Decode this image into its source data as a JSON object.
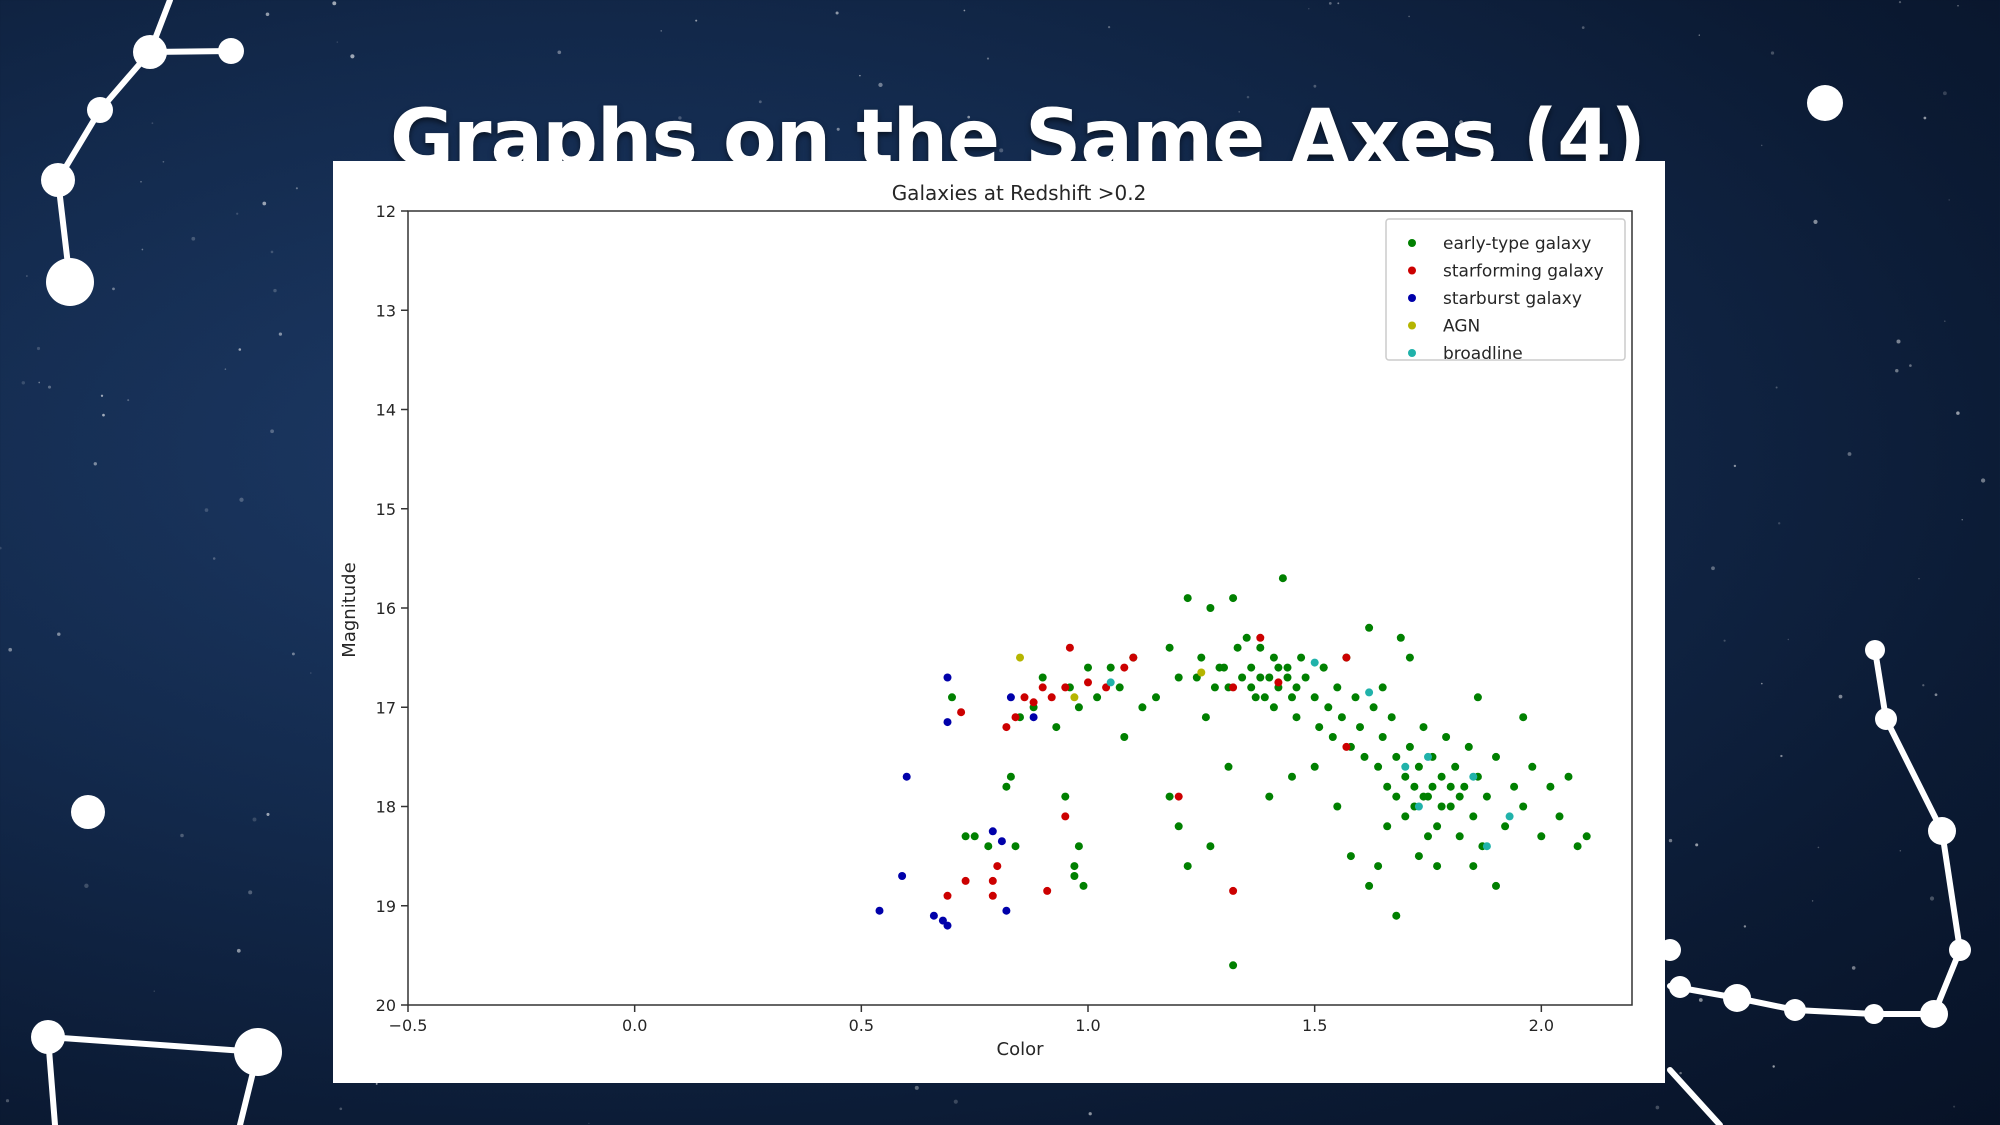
{
  "slide": {
    "title": "Graphs on the Same Axes (4)",
    "background_color": "#132a4d",
    "constellation_color": "#ffffff"
  },
  "chart_data": {
    "type": "scatter",
    "title": "Galaxies at Redshift >0.2",
    "xlabel": "Color",
    "ylabel": "Magnitude",
    "xlim": [
      -0.5,
      2.2
    ],
    "ylim": [
      20,
      12
    ],
    "y_inverted": true,
    "xticks": [
      -0.5,
      0.0,
      0.5,
      1.0,
      1.5,
      2.0
    ],
    "xtick_labels": [
      "−0.5",
      "0.0",
      "0.5",
      "1.0",
      "1.5",
      "2.0"
    ],
    "yticks": [
      12,
      13,
      14,
      15,
      16,
      17,
      18,
      19,
      20
    ],
    "ytick_labels": [
      "12",
      "13",
      "14",
      "15",
      "16",
      "17",
      "18",
      "19",
      "20"
    ],
    "grid": false,
    "legend_position": "top-right",
    "series": [
      {
        "name": "early-type galaxy",
        "color": "#008000",
        "points": [
          [
            0.7,
            16.9
          ],
          [
            0.75,
            18.3
          ],
          [
            0.73,
            18.3
          ],
          [
            0.78,
            18.4
          ],
          [
            0.83,
            17.7
          ],
          [
            0.84,
            18.4
          ],
          [
            0.82,
            17.8
          ],
          [
            0.85,
            17.1
          ],
          [
            0.88,
            17.0
          ],
          [
            0.9,
            16.7
          ],
          [
            0.93,
            17.2
          ],
          [
            0.96,
            16.8
          ],
          [
            0.98,
            17.0
          ],
          [
            1.0,
            16.6
          ],
          [
            1.02,
            16.9
          ],
          [
            1.05,
            16.6
          ],
          [
            1.07,
            16.8
          ],
          [
            1.1,
            16.5
          ],
          [
            1.12,
            17.0
          ],
          [
            1.15,
            16.9
          ],
          [
            1.18,
            16.4
          ],
          [
            1.2,
            16.7
          ],
          [
            1.22,
            15.9
          ],
          [
            1.25,
            16.5
          ],
          [
            1.27,
            16.0
          ],
          [
            1.28,
            16.8
          ],
          [
            1.3,
            16.6
          ],
          [
            1.32,
            15.9
          ],
          [
            1.33,
            16.4
          ],
          [
            1.35,
            16.3
          ],
          [
            1.36,
            16.6
          ],
          [
            1.37,
            16.9
          ],
          [
            1.38,
            16.4
          ],
          [
            1.4,
            16.7
          ],
          [
            1.41,
            16.5
          ],
          [
            1.42,
            16.8
          ],
          [
            1.43,
            15.7
          ],
          [
            1.44,
            16.6
          ],
          [
            1.45,
            16.9
          ],
          [
            1.46,
            17.1
          ],
          [
            1.47,
            16.5
          ],
          [
            1.48,
            16.7
          ],
          [
            1.5,
            16.9
          ],
          [
            1.51,
            17.2
          ],
          [
            1.52,
            16.6
          ],
          [
            1.53,
            17.0
          ],
          [
            1.54,
            17.3
          ],
          [
            1.55,
            16.8
          ],
          [
            1.56,
            17.1
          ],
          [
            1.57,
            16.5
          ],
          [
            1.58,
            17.4
          ],
          [
            1.59,
            16.9
          ],
          [
            1.6,
            17.2
          ],
          [
            1.61,
            17.5
          ],
          [
            1.62,
            16.2
          ],
          [
            1.63,
            17.0
          ],
          [
            1.64,
            17.6
          ],
          [
            1.65,
            17.3
          ],
          [
            1.66,
            17.8
          ],
          [
            1.67,
            17.1
          ],
          [
            1.68,
            17.5
          ],
          [
            1.69,
            16.3
          ],
          [
            1.7,
            17.7
          ],
          [
            1.71,
            17.4
          ],
          [
            1.72,
            18.0
          ],
          [
            1.73,
            17.6
          ],
          [
            1.74,
            17.2
          ],
          [
            1.75,
            17.9
          ],
          [
            1.76,
            17.5
          ],
          [
            1.77,
            18.2
          ],
          [
            1.78,
            17.7
          ],
          [
            1.79,
            17.3
          ],
          [
            1.8,
            18.0
          ],
          [
            1.81,
            17.6
          ],
          [
            1.82,
            18.3
          ],
          [
            1.83,
            17.8
          ],
          [
            1.84,
            17.4
          ],
          [
            1.85,
            18.1
          ],
          [
            1.86,
            17.7
          ],
          [
            1.87,
            18.4
          ],
          [
            1.88,
            17.9
          ],
          [
            1.9,
            17.5
          ],
          [
            1.92,
            18.2
          ],
          [
            1.94,
            17.8
          ],
          [
            1.96,
            18.0
          ],
          [
            1.98,
            17.6
          ],
          [
            2.0,
            18.3
          ],
          [
            2.02,
            17.8
          ],
          [
            2.04,
            18.1
          ],
          [
            2.06,
            17.7
          ],
          [
            2.08,
            18.4
          ],
          [
            2.1,
            18.3
          ],
          [
            1.72,
            17.8
          ],
          [
            1.74,
            17.9
          ],
          [
            1.76,
            17.8
          ],
          [
            1.78,
            18.0
          ],
          [
            1.7,
            18.1
          ],
          [
            1.68,
            17.9
          ],
          [
            1.66,
            18.2
          ],
          [
            1.8,
            17.8
          ],
          [
            1.82,
            17.9
          ],
          [
            1.75,
            18.3
          ],
          [
            1.73,
            18.5
          ],
          [
            1.77,
            18.6
          ],
          [
            1.85,
            18.6
          ],
          [
            1.9,
            18.8
          ],
          [
            1.64,
            18.6
          ],
          [
            1.68,
            19.1
          ],
          [
            1.58,
            18.5
          ],
          [
            1.62,
            18.8
          ],
          [
            1.38,
            16.7
          ],
          [
            1.36,
            16.8
          ],
          [
            1.34,
            16.7
          ],
          [
            1.42,
            16.6
          ],
          [
            1.39,
            16.9
          ],
          [
            1.41,
            17.0
          ],
          [
            1.44,
            16.7
          ],
          [
            1.46,
            16.8
          ],
          [
            1.31,
            16.8
          ],
          [
            1.29,
            16.6
          ],
          [
            1.26,
            17.1
          ],
          [
            1.24,
            16.7
          ],
          [
            1.22,
            18.6
          ],
          [
            1.27,
            18.4
          ],
          [
            1.32,
            19.6
          ],
          [
            1.31,
            17.6
          ],
          [
            1.18,
            17.9
          ],
          [
            1.2,
            18.2
          ],
          [
            1.45,
            17.7
          ],
          [
            1.4,
            17.9
          ],
          [
            1.55,
            18.0
          ],
          [
            1.5,
            17.6
          ],
          [
            0.98,
            18.4
          ],
          [
            0.97,
            18.7
          ],
          [
            0.99,
            18.8
          ],
          [
            0.95,
            17.9
          ],
          [
            0.97,
            18.6
          ],
          [
            1.08,
            17.3
          ],
          [
            1.52,
            16.6
          ],
          [
            1.65,
            16.8
          ],
          [
            1.71,
            16.5
          ],
          [
            1.86,
            16.9
          ],
          [
            1.96,
            17.1
          ]
        ]
      },
      {
        "name": "starforming galaxy",
        "color": "#cc0000",
        "points": [
          [
            0.69,
            18.9
          ],
          [
            0.73,
            18.75
          ],
          [
            0.72,
            17.05
          ],
          [
            0.79,
            18.9
          ],
          [
            0.8,
            18.6
          ],
          [
            0.82,
            17.2
          ],
          [
            0.84,
            17.1
          ],
          [
            0.86,
            16.9
          ],
          [
            0.88,
            16.95
          ],
          [
            0.9,
            16.8
          ],
          [
            0.92,
            16.9
          ],
          [
            0.95,
            16.8
          ],
          [
            0.96,
            16.4
          ],
          [
            0.95,
            18.1
          ],
          [
            0.91,
            18.85
          ],
          [
            1.0,
            16.75
          ],
          [
            1.04,
            16.8
          ],
          [
            1.08,
            16.6
          ],
          [
            1.1,
            16.5
          ],
          [
            1.2,
            17.9
          ],
          [
            1.32,
            16.8
          ],
          [
            1.32,
            18.85
          ],
          [
            1.38,
            16.3
          ],
          [
            1.42,
            16.75
          ],
          [
            1.57,
            16.5
          ],
          [
            1.57,
            17.4
          ],
          [
            0.79,
            18.75
          ]
        ]
      },
      {
        "name": "starburst galaxy",
        "color": "#0000aa",
        "points": [
          [
            0.54,
            19.05
          ],
          [
            0.59,
            18.7
          ],
          [
            0.6,
            17.7
          ],
          [
            0.66,
            19.1
          ],
          [
            0.68,
            19.15
          ],
          [
            0.69,
            19.2
          ],
          [
            0.69,
            16.7
          ],
          [
            0.69,
            17.15
          ],
          [
            0.79,
            18.25
          ],
          [
            0.81,
            18.35
          ],
          [
            0.82,
            19.05
          ],
          [
            0.83,
            16.9
          ],
          [
            0.88,
            17.1
          ]
        ]
      },
      {
        "name": "AGN",
        "color": "#b5b500",
        "points": [
          [
            0.85,
            16.5
          ],
          [
            0.97,
            16.9
          ],
          [
            1.25,
            16.65
          ]
        ]
      },
      {
        "name": "broadline",
        "color": "#20b2aa",
        "points": [
          [
            1.05,
            16.75
          ],
          [
            1.5,
            16.55
          ],
          [
            1.62,
            16.85
          ],
          [
            1.7,
            17.6
          ],
          [
            1.73,
            18.0
          ],
          [
            1.85,
            17.7
          ],
          [
            1.93,
            18.1
          ],
          [
            1.88,
            18.4
          ],
          [
            1.75,
            17.5
          ]
        ]
      }
    ]
  }
}
